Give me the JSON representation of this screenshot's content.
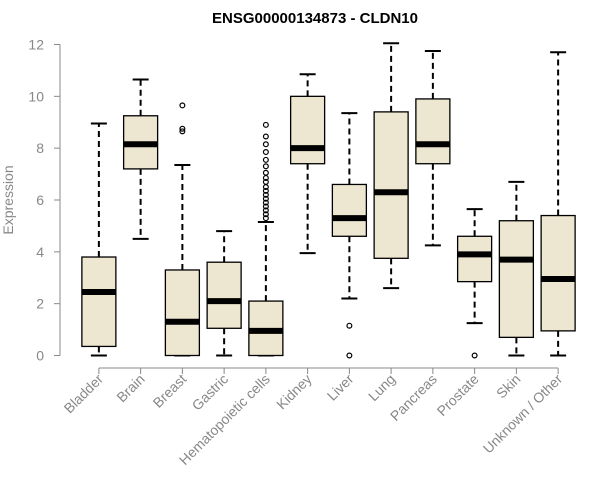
{
  "chart_data": {
    "type": "boxplot",
    "title": "ENSG00000134873 - CLDN10",
    "xlabel": "",
    "ylabel": "Expression",
    "ylim": [
      0,
      12
    ],
    "yticks": [
      0,
      2,
      4,
      6,
      8,
      10,
      12
    ],
    "categories": [
      "Bladder",
      "Brain",
      "Breast",
      "Gastric",
      "Hematopoietic cells",
      "Kidney",
      "Liver",
      "Lung",
      "Pancreas",
      "Prostate",
      "Skin",
      "Unknown / Other"
    ],
    "series": [
      {
        "name": "Bladder",
        "min": 0.0,
        "q1": 0.35,
        "median": 2.45,
        "q3": 3.8,
        "max": 8.95,
        "outliers": []
      },
      {
        "name": "Brain",
        "min": 4.5,
        "q1": 7.2,
        "median": 8.15,
        "q3": 9.25,
        "max": 10.65,
        "outliers": []
      },
      {
        "name": "Breast",
        "min": 0.0,
        "q1": 0.0,
        "median": 1.3,
        "q3": 3.3,
        "max": 7.35,
        "outliers": [
          8.65,
          8.75,
          9.65
        ]
      },
      {
        "name": "Gastric",
        "min": 0.0,
        "q1": 1.05,
        "median": 2.1,
        "q3": 3.6,
        "max": 4.8,
        "outliers": []
      },
      {
        "name": "Hematopoietic cells",
        "min": 0.0,
        "q1": 0.0,
        "median": 0.95,
        "q3": 2.1,
        "max": 5.15,
        "outliers": [
          5.3,
          5.45,
          5.6,
          5.75,
          5.9,
          6.05,
          6.2,
          6.35,
          6.5,
          6.7,
          6.85,
          7.05,
          7.3,
          7.55,
          7.85,
          8.15,
          8.45,
          8.9
        ]
      },
      {
        "name": "Kidney",
        "min": 3.95,
        "q1": 7.4,
        "median": 8.0,
        "q3": 10.0,
        "max": 10.85,
        "outliers": []
      },
      {
        "name": "Liver",
        "min": 2.2,
        "q1": 4.6,
        "median": 5.3,
        "q3": 6.6,
        "max": 9.35,
        "outliers": [
          0.0,
          1.15
        ]
      },
      {
        "name": "Lung",
        "min": 2.6,
        "q1": 3.75,
        "median": 6.3,
        "q3": 9.4,
        "max": 12.05,
        "outliers": []
      },
      {
        "name": "Pancreas",
        "min": 4.25,
        "q1": 7.4,
        "median": 8.15,
        "q3": 9.9,
        "max": 11.75,
        "outliers": []
      },
      {
        "name": "Prostate",
        "min": 1.25,
        "q1": 2.85,
        "median": 3.9,
        "q3": 4.6,
        "max": 5.65,
        "outliers": [
          0.0
        ]
      },
      {
        "name": "Skin",
        "min": 0.0,
        "q1": 0.7,
        "median": 3.7,
        "q3": 5.2,
        "max": 6.7,
        "outliers": []
      },
      {
        "name": "Unknown / Other",
        "min": 0.0,
        "q1": 0.95,
        "median": 2.95,
        "q3": 5.4,
        "max": 11.7,
        "outliers": []
      }
    ],
    "colors": {
      "box_fill": "#ede6d0",
      "box_stroke": "#000000",
      "axis": "#888888",
      "title": "#000000"
    },
    "grid": false,
    "legend": "none"
  }
}
